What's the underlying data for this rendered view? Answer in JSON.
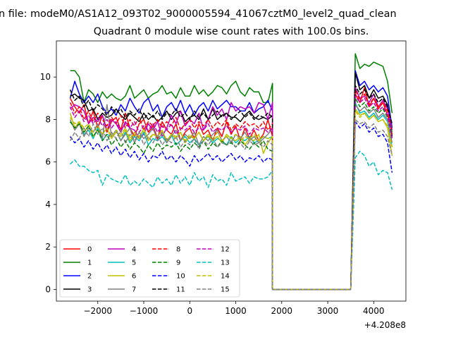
{
  "suptitle": "n file: modeM0/AS1A12_093T02_9000005594_41067cztM0_level2_quad_clean",
  "chart_data": {
    "type": "line",
    "title": "Quadrant 0 module wise count rates with 100.0s bins.",
    "xlabel": "",
    "ylabel": "",
    "x_offset_label": "+4.208e8",
    "xlim": [
      -2900,
      4700
    ],
    "ylim": [
      -0.55,
      11.7
    ],
    "x_ticks": [
      -2000,
      -1000,
      0,
      1000,
      2000,
      3000,
      4000
    ],
    "x_tick_labels": [
      "−2000",
      "−1000",
      "0",
      "1000",
      "2000",
      "3000",
      "4000"
    ],
    "y_ticks": [
      0,
      2,
      4,
      6,
      8,
      10
    ],
    "y_tick_labels": [
      "0",
      "2",
      "4",
      "6",
      "8",
      "10"
    ],
    "grid": false,
    "legend_position": "lower-left",
    "legend_columns": 4,
    "x_start": -2600,
    "x_step": 100,
    "x_end": 4400,
    "data_gap": [
      1800,
      3500
    ],
    "series": [
      {
        "name": "0",
        "color": "#ff0000",
        "dash": "solid",
        "pre": [
          9.0,
          8.6,
          8.3,
          8.7,
          7.8,
          8.4,
          7.6,
          8.2,
          7.4,
          7.9,
          8.1,
          7.5,
          8.3,
          7.6,
          7.2,
          7.8,
          8.0,
          7.4,
          7.7,
          7.1,
          7.9,
          7.5,
          7.3,
          7.8,
          7.0,
          7.4,
          7.6,
          7.1,
          7.8,
          7.3,
          7.5,
          7.0,
          7.6,
          7.2,
          7.9,
          7.3,
          7.7,
          7.0,
          7.6,
          7.1,
          7.5,
          7.0,
          7.3,
          8.0,
          7.2
        ],
        "post": [
          9.2,
          8.8,
          9.5,
          8.6,
          9.0,
          8.5,
          8.8,
          8.2,
          7.6
        ]
      },
      {
        "name": "1",
        "color": "#008000",
        "dash": "solid",
        "pre": [
          10.3,
          10.3,
          10.0,
          8.8,
          9.4,
          9.2,
          8.8,
          9.3,
          9.0,
          9.2,
          9.0,
          8.9,
          9.1,
          9.6,
          9.0,
          9.2,
          9.4,
          9.0,
          9.2,
          9.3,
          9.6,
          9.2,
          9.3,
          9.0,
          9.5,
          9.1,
          9.1,
          9.6,
          9.2,
          9.4,
          9.1,
          9.3,
          9.6,
          9.5,
          9.2,
          9.6,
          9.8,
          9.3,
          9.1,
          9.5,
          9.3,
          9.3,
          8.8,
          8.8,
          9.7
        ],
        "post": [
          11.1,
          10.4,
          10.6,
          10.5,
          10.7,
          10.6,
          10.5,
          9.8,
          8.3
        ]
      },
      {
        "name": "2",
        "color": "#0000ff",
        "dash": "solid",
        "pre": [
          9.0,
          9.8,
          9.2,
          8.8,
          9.1,
          8.8,
          9.2,
          8.6,
          8.3,
          8.5,
          8.2,
          8.7,
          8.4,
          9.0,
          8.6,
          8.3,
          8.8,
          9.0,
          8.4,
          8.7,
          8.1,
          8.6,
          8.8,
          8.4,
          8.9,
          8.3,
          8.7,
          8.2,
          8.6,
          8.8,
          8.4,
          8.9,
          8.5,
          8.7,
          8.9,
          8.6,
          8.6,
          8.4,
          8.4,
          8.8,
          8.3,
          8.5,
          8.6,
          8.9,
          8.4
        ],
        "post": [
          10.3,
          9.6,
          9.8,
          9.4,
          9.6,
          9.3,
          9.5,
          9.1,
          7.6
        ]
      },
      {
        "name": "3",
        "color": "#000000",
        "dash": "solid",
        "pre": [
          9.1,
          9.2,
          9.0,
          8.9,
          8.4,
          8.5,
          8.0,
          8.3,
          8.1,
          8.2,
          8.5,
          8.2,
          8.0,
          8.3,
          8.1,
          7.9,
          8.3,
          8.0,
          8.2,
          7.9,
          8.1,
          8.4,
          8.0,
          8.3,
          8.4,
          7.9,
          8.1,
          8.2,
          8.0,
          8.5,
          8.0,
          8.5,
          8.0,
          8.2,
          8.3,
          8.1,
          8.1,
          7.9,
          8.2,
          8.4,
          8.1,
          8.0,
          8.1,
          8.0,
          8.2
        ],
        "post": [
          10.2,
          9.4,
          9.6,
          9.0,
          9.4,
          9.0,
          9.1,
          8.7,
          7.2
        ]
      },
      {
        "name": "4",
        "color": "#bf00bf",
        "dash": "solid",
        "pre": [
          8.5,
          8.7,
          8.6,
          8.4,
          7.8,
          8.1,
          7.9,
          8.2,
          7.5,
          8.0,
          7.8,
          7.4,
          7.9,
          7.6,
          7.5,
          7.1,
          7.3,
          7.8,
          7.5,
          7.9,
          7.2,
          7.6,
          8.2,
          7.8,
          8.4,
          7.7,
          8.0,
          7.8,
          8.3,
          7.5,
          8.0,
          8.6,
          8.2,
          8.5,
          8.0,
          8.8,
          8.4,
          8.6,
          8.5,
          8.6,
          8.3,
          8.8,
          8.7,
          8.0,
          8.8
        ],
        "post": [
          9.5,
          9.0,
          9.1,
          8.8,
          9.2,
          8.6,
          8.9,
          8.5,
          7.5
        ]
      },
      {
        "name": "5",
        "color": "#00bfbf",
        "dash": "solid",
        "pre": [
          7.9,
          7.6,
          7.8,
          7.3,
          7.5,
          7.1,
          7.6,
          7.0,
          7.3,
          7.2,
          7.5,
          7.0,
          7.4,
          6.9,
          7.2,
          7.0,
          7.4,
          6.8,
          7.1,
          7.0,
          7.2,
          6.9,
          7.3,
          6.8,
          7.0,
          7.2,
          6.9,
          7.1,
          6.8,
          7.0,
          7.2,
          6.9,
          7.1,
          7.0,
          6.8,
          7.2,
          6.9,
          7.1,
          7.0,
          7.2,
          6.9,
          7.0,
          7.2,
          7.1,
          7.2
        ],
        "post": [
          8.8,
          8.3,
          8.4,
          8.1,
          8.3,
          8.0,
          8.2,
          7.9,
          6.7
        ]
      },
      {
        "name": "6",
        "color": "#bfbf00",
        "dash": "solid",
        "pre": [
          8.3,
          7.6,
          7.9,
          7.4,
          7.7,
          7.2,
          7.5,
          7.3,
          7.6,
          7.1,
          7.4,
          7.2,
          7.5,
          7.0,
          7.3,
          7.1,
          7.6,
          7.0,
          7.3,
          7.2,
          7.5,
          7.0,
          7.3,
          7.1,
          7.4,
          6.9,
          7.2,
          7.1,
          7.4,
          7.0,
          7.3,
          7.0,
          7.2,
          6.9,
          7.3,
          7.1,
          7.0,
          7.2,
          6.8,
          7.1,
          7.0,
          7.3,
          6.4,
          6.9,
          7.2
        ],
        "post": [
          8.5,
          8.2,
          8.3,
          8.0,
          8.2,
          7.9,
          8.0,
          7.6,
          6.3
        ]
      },
      {
        "name": "7",
        "color": "#808080",
        "dash": "solid",
        "pre": [
          8.0,
          7.5,
          7.8,
          7.2,
          7.6,
          7.4,
          7.8,
          7.1,
          8.7,
          7.2,
          7.5,
          7.0,
          7.3,
          7.6,
          6.9,
          7.4,
          7.1,
          7.3,
          7.6,
          7.0,
          7.4,
          6.9,
          7.2,
          7.5,
          7.0,
          7.3,
          7.1,
          7.4,
          6.8,
          7.2,
          7.0,
          7.3,
          7.5,
          7.0,
          7.2,
          6.9,
          7.3,
          7.1,
          7.4,
          7.0,
          7.2,
          6.9,
          7.1,
          7.3,
          7.6
        ],
        "post": [
          8.7,
          8.4,
          8.6,
          8.3,
          8.5,
          8.1,
          8.3,
          8.0,
          6.9
        ]
      },
      {
        "name": "8",
        "color": "#ff0000",
        "dash": "dashed",
        "pre": [
          8.8,
          8.3,
          8.6,
          8.0,
          8.4,
          7.9,
          8.3,
          8.0,
          7.7,
          8.1,
          7.8,
          8.2,
          7.6,
          8.0,
          7.7,
          8.1,
          7.5,
          7.9,
          7.7,
          8.0,
          7.6,
          7.9,
          7.7,
          8.1,
          7.5,
          7.8,
          8.0,
          7.6,
          7.9,
          7.7,
          8.0,
          7.6,
          7.9,
          7.7,
          8.0,
          7.5,
          7.8,
          7.6,
          7.9,
          7.7,
          7.8,
          7.6,
          7.9,
          7.5,
          7.8
        ],
        "post": [
          9.4,
          8.9,
          9.2,
          8.7,
          9.0,
          8.6,
          8.8,
          8.4,
          7.3
        ]
      },
      {
        "name": "9",
        "color": "#008000",
        "dash": "dashed",
        "pre": [
          7.9,
          7.6,
          7.8,
          7.4,
          7.7,
          7.2,
          7.5,
          7.0,
          7.3,
          6.8,
          7.1,
          6.7,
          7.0,
          6.6,
          6.9,
          6.7,
          6.4,
          6.8,
          6.5,
          6.9,
          6.6,
          6.8,
          6.7,
          6.9,
          6.5,
          6.8,
          6.6,
          6.9,
          6.7,
          7.0,
          6.6,
          6.9,
          6.7,
          7.0,
          6.8,
          6.9,
          6.7,
          7.0,
          6.8,
          6.6,
          6.9,
          6.7,
          7.0,
          6.6,
          6.5
        ],
        "post": [
          9.0,
          8.6,
          8.8,
          8.4,
          8.6,
          8.3,
          8.5,
          8.1,
          7.4
        ]
      },
      {
        "name": "10",
        "color": "#0000ff",
        "dash": "dashed",
        "pre": [
          7.2,
          6.9,
          7.1,
          6.7,
          7.0,
          6.6,
          6.9,
          6.5,
          6.8,
          6.4,
          6.7,
          6.3,
          6.6,
          6.2,
          6.5,
          6.1,
          6.4,
          6.0,
          6.3,
          6.2,
          6.5,
          6.1,
          6.3,
          6.0,
          6.3,
          6.1,
          5.8,
          6.3,
          6.0,
          6.2,
          6.4,
          6.1,
          6.3,
          6.0,
          6.2,
          6.4,
          6.1,
          6.3,
          6.0,
          6.2,
          6.1,
          6.3,
          6.0,
          6.2,
          6.1
        ],
        "post": [
          7.9,
          7.6,
          7.8,
          7.4,
          7.6,
          7.2,
          7.3,
          6.9,
          5.5
        ]
      },
      {
        "name": "11",
        "color": "#000000",
        "dash": "dashed",
        "pre": [
          9.4,
          8.9,
          9.1,
          8.6,
          8.9,
          8.4,
          8.7,
          8.5,
          8.2,
          8.6,
          8.3,
          8.5,
          8.1,
          8.4,
          8.2,
          8.5,
          8.0,
          8.3,
          8.1,
          8.4,
          8.0,
          8.3,
          8.2,
          8.5,
          8.1,
          8.3,
          8.0,
          8.4,
          8.1,
          8.3,
          8.0,
          8.2,
          8.4,
          8.1,
          8.3,
          8.0,
          8.2,
          8.4,
          8.1,
          8.3,
          8.0,
          8.2,
          8.1,
          8.3,
          8.1
        ],
        "post": [
          9.6,
          9.2,
          9.4,
          9.0,
          9.2,
          8.8,
          9.0,
          8.6,
          7.8
        ]
      },
      {
        "name": "12",
        "color": "#bf00bf",
        "dash": "dashed",
        "pre": [
          8.6,
          8.1,
          8.4,
          7.9,
          8.2,
          7.8,
          8.1,
          7.7,
          8.0,
          7.6,
          7.9,
          7.5,
          7.8,
          7.6,
          7.9,
          7.4,
          7.7,
          7.5,
          7.8,
          7.4,
          7.7,
          7.5,
          7.8,
          7.3,
          7.6,
          7.5,
          7.7,
          7.4,
          7.6,
          7.5,
          7.8,
          7.4,
          7.6,
          7.5,
          7.7,
          7.4,
          7.6,
          7.5,
          7.7,
          7.3,
          7.6,
          7.5,
          7.6,
          7.4,
          7.6
        ],
        "post": [
          9.1,
          8.8,
          9.0,
          8.6,
          8.8,
          8.4,
          8.6,
          8.2,
          7.1
        ]
      },
      {
        "name": "13",
        "color": "#00bfbf",
        "dash": "dashed",
        "pre": [
          5.9,
          6.1,
          5.8,
          5.8,
          5.6,
          5.5,
          5.6,
          4.9,
          5.4,
          5.2,
          5.1,
          5.0,
          5.4,
          4.9,
          5.1,
          4.9,
          5.2,
          5.0,
          4.8,
          5.3,
          5.0,
          5.2,
          4.9,
          5.4,
          5.0,
          5.3,
          4.9,
          5.5,
          5.1,
          5.3,
          4.8,
          5.4,
          5.1,
          5.2,
          4.9,
          5.5,
          5.1,
          5.2,
          5.3,
          5.0,
          5.3,
          5.2,
          5.2,
          5.3,
          5.6
        ],
        "post": [
          6.2,
          6.5,
          6.3,
          5.8,
          6.0,
          5.4,
          5.6,
          5.5,
          4.7
        ]
      },
      {
        "name": "14",
        "color": "#bfbf00",
        "dash": "dashed",
        "pre": [
          8.1,
          7.8,
          7.9,
          7.6,
          7.8,
          7.4,
          7.7,
          7.3,
          7.6,
          7.2,
          7.5,
          7.3,
          7.6,
          7.1,
          7.4,
          7.2,
          7.5,
          7.1,
          7.3,
          7.2,
          7.5,
          7.0,
          7.3,
          7.2,
          7.4,
          7.0,
          7.3,
          7.1,
          7.4,
          7.0,
          7.2,
          7.1,
          7.4,
          7.0,
          7.2,
          7.1,
          7.3,
          7.0,
          7.2,
          7.1,
          7.3,
          7.0,
          7.2,
          7.1,
          7.2
        ],
        "post": [
          8.4,
          8.1,
          8.3,
          8.0,
          8.2,
          7.9,
          8.0,
          7.7,
          6.7
        ]
      },
      {
        "name": "15",
        "color": "#808080",
        "dash": "dashed",
        "pre": [
          7.0,
          7.4,
          7.1,
          7.6,
          7.2,
          7.8,
          7.3,
          7.6,
          7.0,
          7.4,
          7.1,
          7.5,
          6.9,
          7.3,
          7.0,
          7.4,
          6.8,
          7.2,
          6.9,
          7.3,
          6.8,
          7.1,
          6.9,
          7.2,
          6.7,
          7.0,
          6.8,
          7.1,
          6.6,
          7.0,
          6.8,
          7.1,
          6.7,
          6.9,
          6.8,
          7.0,
          6.7,
          6.9,
          6.6,
          7.0,
          6.8,
          6.9,
          6.7,
          7.0,
          6.8
        ],
        "post": [
          8.0,
          7.8,
          7.9,
          7.6,
          7.8,
          7.4,
          7.5,
          7.2,
          6.3
        ]
      }
    ]
  }
}
